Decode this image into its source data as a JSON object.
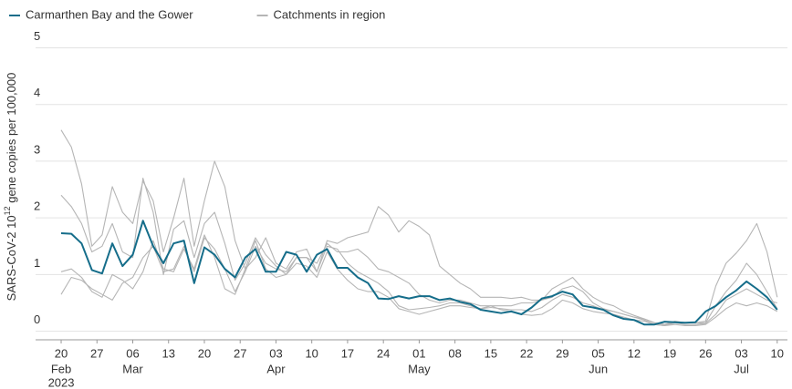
{
  "chart_data": {
    "type": "line",
    "ylabel": [
      "SARS-CoV-2 10",
      "12",
      " gene copies  per  100,000"
    ],
    "x": [
      "2023-02-20",
      "2023-02-22",
      "2023-02-24",
      "2023-02-26",
      "2023-02-28",
      "2023-03-02",
      "2023-03-04",
      "2023-03-06",
      "2023-03-08",
      "2023-03-10",
      "2023-03-12",
      "2023-03-14",
      "2023-03-16",
      "2023-03-18",
      "2023-03-20",
      "2023-03-22",
      "2023-03-24",
      "2023-03-26",
      "2023-03-28",
      "2023-03-30",
      "2023-04-01",
      "2023-04-03",
      "2023-04-05",
      "2023-04-07",
      "2023-04-09",
      "2023-04-11",
      "2023-04-13",
      "2023-04-15",
      "2023-04-17",
      "2023-04-19",
      "2023-04-21",
      "2023-04-23",
      "2023-04-25",
      "2023-04-27",
      "2023-04-29",
      "2023-05-01",
      "2023-05-03",
      "2023-05-05",
      "2023-05-07",
      "2023-05-09",
      "2023-05-11",
      "2023-05-13",
      "2023-05-15",
      "2023-05-17",
      "2023-05-19",
      "2023-05-21",
      "2023-05-23",
      "2023-05-25",
      "2023-05-27",
      "2023-05-29",
      "2023-05-31",
      "2023-06-02",
      "2023-06-04",
      "2023-06-06",
      "2023-06-08",
      "2023-06-10",
      "2023-06-12",
      "2023-06-14",
      "2023-06-16",
      "2023-06-18",
      "2023-06-20",
      "2023-06-22",
      "2023-06-24",
      "2023-06-26",
      "2023-06-28",
      "2023-06-30",
      "2023-07-02",
      "2023-07-04",
      "2023-07-06",
      "2023-07-08",
      "2023-07-10"
    ],
    "series": [
      {
        "name": "Carmarthen Bay and the Gower",
        "color": "#156d8a",
        "values": [
          1.73,
          1.72,
          1.55,
          1.08,
          1.02,
          1.55,
          1.15,
          1.35,
          1.95,
          1.5,
          1.2,
          1.55,
          1.6,
          0.85,
          1.48,
          1.35,
          1.1,
          0.95,
          1.3,
          1.45,
          1.05,
          1.05,
          1.4,
          1.35,
          1.05,
          1.35,
          1.45,
          1.12,
          1.12,
          0.95,
          0.85,
          0.58,
          0.57,
          0.62,
          0.58,
          0.62,
          0.62,
          0.55,
          0.58,
          0.52,
          0.48,
          0.38,
          0.35,
          0.32,
          0.35,
          0.3,
          0.42,
          0.58,
          0.62,
          0.7,
          0.65,
          0.45,
          0.42,
          0.38,
          0.28,
          0.22,
          0.2,
          0.12,
          0.12,
          0.17,
          0.16,
          0.15,
          0.16,
          0.35,
          0.45,
          0.6,
          0.72,
          0.88,
          0.75,
          0.6,
          0.38
        ]
      },
      {
        "name": "Catchments in region",
        "color": "#b5b5b5",
        "values": [
          3.55,
          3.25,
          2.6,
          1.5,
          1.7,
          2.55,
          2.1,
          1.9,
          2.65,
          2.3,
          1.4,
          2.0,
          2.7,
          1.5,
          2.3,
          3.0,
          2.55,
          1.6,
          1.1,
          1.3,
          1.65,
          1.2,
          1.1,
          1.4,
          1.45,
          1.05,
          1.6,
          1.55,
          1.65,
          1.7,
          1.75,
          2.2,
          2.05,
          1.75,
          1.95,
          1.85,
          1.7,
          1.15,
          1.0,
          0.85,
          0.75,
          0.6,
          0.6,
          0.6,
          0.58,
          0.6,
          0.55,
          0.55,
          0.6,
          0.75,
          0.8,
          0.7,
          0.5,
          0.4,
          0.35,
          0.3,
          0.25,
          0.2,
          0.12,
          0.1,
          0.15,
          0.15,
          0.15,
          0.18,
          0.8,
          1.2,
          1.38,
          1.6,
          1.9,
          1.4,
          0.6
        ]
      },
      {
        "name": "Catchments in region",
        "color": "#b5b5b5",
        "values": [
          2.4,
          2.2,
          1.9,
          1.4,
          1.5,
          1.9,
          1.4,
          1.3,
          2.7,
          2.1,
          1.0,
          1.8,
          1.95,
          1.3,
          1.9,
          2.1,
          1.55,
          0.9,
          1.2,
          1.65,
          1.35,
          1.15,
          1.0,
          1.3,
          1.3,
          1.2,
          1.55,
          1.4,
          1.4,
          1.45,
          1.3,
          1.1,
          1.05,
          0.95,
          0.85,
          0.65,
          0.55,
          0.5,
          0.55,
          0.55,
          0.5,
          0.45,
          0.45,
          0.45,
          0.45,
          0.5,
          0.5,
          0.55,
          0.75,
          0.85,
          0.95,
          0.75,
          0.6,
          0.5,
          0.45,
          0.35,
          0.28,
          0.22,
          0.15,
          0.12,
          0.18,
          0.15,
          0.15,
          0.15,
          0.45,
          0.7,
          0.9,
          1.2,
          1.0,
          0.7,
          0.4
        ]
      },
      {
        "name": "Catchments in region",
        "color": "#b5b5b5",
        "values": [
          1.05,
          1.1,
          0.95,
          0.7,
          0.6,
          1.0,
          0.9,
          0.75,
          1.05,
          1.6,
          1.1,
          1.05,
          1.45,
          1.1,
          1.7,
          1.3,
          0.75,
          0.65,
          1.1,
          1.6,
          1.1,
          0.95,
          1.0,
          1.2,
          1.15,
          0.95,
          1.4,
          1.1,
          0.9,
          0.75,
          0.7,
          0.7,
          0.6,
          0.4,
          0.35,
          0.3,
          0.35,
          0.4,
          0.45,
          0.45,
          0.42,
          0.4,
          0.45,
          0.38,
          0.35,
          0.3,
          0.28,
          0.3,
          0.4,
          0.55,
          0.5,
          0.4,
          0.35,
          0.32,
          0.3,
          0.25,
          0.2,
          0.18,
          0.12,
          0.1,
          0.12,
          0.1,
          0.1,
          0.12,
          0.25,
          0.4,
          0.5,
          0.45,
          0.5,
          0.45,
          0.35
        ]
      },
      {
        "name": "Catchments in region",
        "color": "#b5b5b5",
        "values": [
          0.65,
          0.95,
          0.9,
          0.75,
          0.65,
          0.55,
          0.85,
          0.95,
          1.3,
          1.5,
          1.05,
          1.1,
          1.5,
          1.05,
          1.65,
          1.45,
          1.1,
          0.7,
          1.05,
          1.5,
          1.2,
          1.1,
          1.05,
          1.3,
          1.3,
          1.05,
          1.5,
          1.45,
          1.2,
          1.05,
          0.95,
          0.85,
          0.7,
          0.45,
          0.38,
          0.4,
          0.42,
          0.45,
          0.5,
          0.5,
          0.45,
          0.4,
          0.42,
          0.4,
          0.38,
          0.38,
          0.35,
          0.42,
          0.55,
          0.65,
          0.6,
          0.5,
          0.45,
          0.38,
          0.35,
          0.3,
          0.25,
          0.22,
          0.15,
          0.12,
          0.15,
          0.12,
          0.12,
          0.14,
          0.3,
          0.55,
          0.65,
          0.75,
          0.65,
          0.55,
          0.5
        ]
      }
    ],
    "xlim": [
      "2023-02-15",
      "2023-07-12"
    ],
    "xticks": [
      {
        "value": "2023-02-20",
        "label": "20"
      },
      {
        "value": "2023-02-27",
        "label": "27"
      },
      {
        "value": "2023-03-06",
        "label": "06"
      },
      {
        "value": "2023-03-13",
        "label": "13"
      },
      {
        "value": "2023-03-20",
        "label": "20"
      },
      {
        "value": "2023-03-27",
        "label": "27"
      },
      {
        "value": "2023-04-03",
        "label": "03"
      },
      {
        "value": "2023-04-10",
        "label": "10"
      },
      {
        "value": "2023-04-17",
        "label": "17"
      },
      {
        "value": "2023-04-24",
        "label": "24"
      },
      {
        "value": "2023-05-01",
        "label": "01"
      },
      {
        "value": "2023-05-08",
        "label": "08"
      },
      {
        "value": "2023-05-15",
        "label": "15"
      },
      {
        "value": "2023-05-22",
        "label": "22"
      },
      {
        "value": "2023-05-29",
        "label": "29"
      },
      {
        "value": "2023-06-05",
        "label": "05"
      },
      {
        "value": "2023-06-12",
        "label": "12"
      },
      {
        "value": "2023-06-19",
        "label": "19"
      },
      {
        "value": "2023-06-26",
        "label": "26"
      },
      {
        "value": "2023-07-03",
        "label": "03"
      },
      {
        "value": "2023-07-10",
        "label": "10"
      }
    ],
    "xtick_months": [
      {
        "value": "2023-02-20",
        "label": "Feb"
      },
      {
        "value": "2023-03-06",
        "label": "Mar"
      },
      {
        "value": "2023-04-03",
        "label": "Apr"
      },
      {
        "value": "2023-05-01",
        "label": "May"
      },
      {
        "value": "2023-06-05",
        "label": "Jun"
      },
      {
        "value": "2023-07-03",
        "label": "Jul"
      }
    ],
    "xtick_year": {
      "value": "2023-02-20",
      "label": "2023"
    },
    "ylim": [
      -0.15,
      5.2
    ],
    "yticks": [
      0,
      1,
      2,
      3,
      4,
      5
    ],
    "grid": true,
    "legend": "top-left"
  }
}
